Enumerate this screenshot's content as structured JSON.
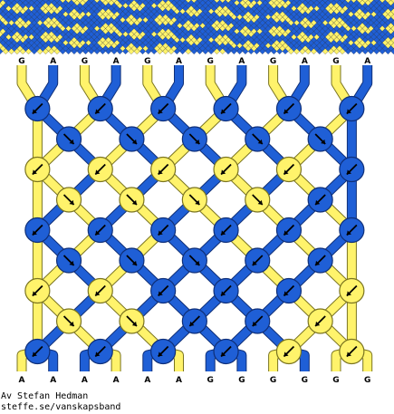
{
  "colors": {
    "A": "#1f5fd6",
    "G": "#fff36b",
    "A_outline": "#0f2f78",
    "G_outline": "#7a7420",
    "background": "#ffffff"
  },
  "strands_top": [
    "G",
    "A",
    "G",
    "A",
    "G",
    "A",
    "G",
    "A",
    "G",
    "A",
    "G",
    "A"
  ],
  "strands_bottom": [
    "A",
    "A",
    "A",
    "A",
    "A",
    "A",
    "G",
    "G",
    "G",
    "G",
    "G",
    "G"
  ],
  "knot_rows": [
    [
      "bw",
      "bw",
      "bw",
      "bw",
      "bw",
      "bw"
    ],
    [
      "f",
      "f",
      "f",
      "f",
      "f"
    ],
    [
      "bw",
      "bw",
      "bw",
      "bw",
      "bw",
      "b"
    ],
    [
      "f",
      "f",
      "f",
      "f",
      "b"
    ],
    [
      "bw",
      "bw",
      "bw",
      "b",
      "b",
      "b"
    ],
    [
      "f",
      "f",
      "f",
      "b",
      "b"
    ],
    [
      "bw",
      "bw",
      "b",
      "b",
      "b",
      "b"
    ],
    [
      "f",
      "f",
      "b",
      "b",
      "b"
    ],
    [
      "bw",
      "b",
      "b",
      "b",
      "b",
      "b"
    ]
  ],
  "knot_legend": {
    "f": "forward-knot",
    "b": "backward-knot",
    "fb": "forward-backward-knot",
    "bw": "backward-forward-knot"
  },
  "credit": {
    "author": "Av Stefan Hedman",
    "url": "steffe.se/vanskapsband"
  }
}
